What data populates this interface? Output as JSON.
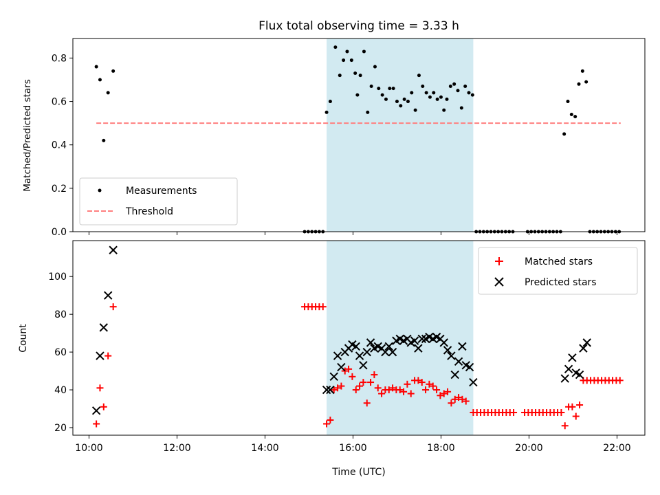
{
  "chart_data": [
    {
      "type": "scatter",
      "title": "Flux total observing time = 3.33 h",
      "ylabel": "Matched/Predicted stars",
      "xlabel": "",
      "xlim": [
        "09:38",
        "22:38"
      ],
      "ylim": [
        0,
        0.89
      ],
      "yticks": [
        0.0,
        0.2,
        0.4,
        0.6,
        0.8
      ],
      "ytick_labels": [
        "0.0",
        "0.2",
        "0.4",
        "0.6",
        "0.8"
      ],
      "grid": false,
      "legend_position": "lower-left",
      "shaded_span": {
        "start": "15:24",
        "end": "18:44",
        "color": "#add8e6"
      },
      "series": [
        {
          "name": "Measurements",
          "marker": "dot",
          "color": "#000000",
          "points": [
            [
              "10:10",
              0.76
            ],
            [
              "10:15",
              0.7
            ],
            [
              "10:20",
              0.42
            ],
            [
              "10:26",
              0.64
            ],
            [
              "10:33",
              0.74
            ],
            [
              "14:54",
              0.0
            ],
            [
              "14:59",
              0.0
            ],
            [
              "15:04",
              0.0
            ],
            [
              "15:09",
              0.0
            ],
            [
              "15:14",
              0.0
            ],
            [
              "15:19",
              0.0
            ],
            [
              "15:24",
              0.55
            ],
            [
              "15:29",
              0.6
            ],
            [
              "15:36",
              0.85
            ],
            [
              "15:42",
              0.72
            ],
            [
              "15:47",
              0.79
            ],
            [
              "15:52",
              0.83
            ],
            [
              "15:58",
              0.79
            ],
            [
              "16:03",
              0.73
            ],
            [
              "16:06",
              0.63
            ],
            [
              "16:10",
              0.72
            ],
            [
              "16:15",
              0.83
            ],
            [
              "16:20",
              0.55
            ],
            [
              "16:25",
              0.67
            ],
            [
              "16:30",
              0.76
            ],
            [
              "16:35",
              0.66
            ],
            [
              "16:40",
              0.63
            ],
            [
              "16:45",
              0.61
            ],
            [
              "16:50",
              0.66
            ],
            [
              "16:55",
              0.66
            ],
            [
              "17:00",
              0.6
            ],
            [
              "17:05",
              0.58
            ],
            [
              "17:10",
              0.61
            ],
            [
              "17:15",
              0.6
            ],
            [
              "17:20",
              0.64
            ],
            [
              "17:25",
              0.56
            ],
            [
              "17:30",
              0.72
            ],
            [
              "17:35",
              0.67
            ],
            [
              "17:40",
              0.64
            ],
            [
              "17:45",
              0.62
            ],
            [
              "17:50",
              0.64
            ],
            [
              "17:55",
              0.61
            ],
            [
              "18:00",
              0.62
            ],
            [
              "18:04",
              0.56
            ],
            [
              "18:08",
              0.61
            ],
            [
              "18:13",
              0.67
            ],
            [
              "18:18",
              0.68
            ],
            [
              "18:23",
              0.65
            ],
            [
              "18:28",
              0.57
            ],
            [
              "18:33",
              0.67
            ],
            [
              "18:38",
              0.64
            ],
            [
              "18:43",
              0.63
            ],
            [
              "18:48",
              0.0
            ],
            [
              "18:53",
              0.0
            ],
            [
              "18:58",
              0.0
            ],
            [
              "19:03",
              0.0
            ],
            [
              "19:08",
              0.0
            ],
            [
              "19:13",
              0.0
            ],
            [
              "19:18",
              0.0
            ],
            [
              "19:23",
              0.0
            ],
            [
              "19:28",
              0.0
            ],
            [
              "19:33",
              0.0
            ],
            [
              "19:38",
              0.0
            ],
            [
              "19:58",
              0.0
            ],
            [
              "20:03",
              0.0
            ],
            [
              "20:08",
              0.0
            ],
            [
              "20:13",
              0.0
            ],
            [
              "20:18",
              0.0
            ],
            [
              "20:23",
              0.0
            ],
            [
              "20:28",
              0.0
            ],
            [
              "20:33",
              0.0
            ],
            [
              "20:38",
              0.0
            ],
            [
              "20:43",
              0.0
            ],
            [
              "20:48",
              0.45
            ],
            [
              "20:53",
              0.6
            ],
            [
              "20:58",
              0.54
            ],
            [
              "21:03",
              0.53
            ],
            [
              "21:08",
              0.68
            ],
            [
              "21:13",
              0.74
            ],
            [
              "21:18",
              0.69
            ],
            [
              "21:23",
              0.0
            ],
            [
              "21:28",
              0.0
            ],
            [
              "21:33",
              0.0
            ],
            [
              "21:38",
              0.0
            ],
            [
              "21:43",
              0.0
            ],
            [
              "21:48",
              0.0
            ],
            [
              "21:53",
              0.0
            ],
            [
              "21:58",
              0.0
            ],
            [
              "22:03",
              0.0
            ]
          ]
        },
        {
          "name": "Threshold",
          "marker": "dashed-line",
          "color": "#ff7f7f",
          "points": [
            [
              "10:10",
              0.5
            ],
            [
              "22:05",
              0.5
            ]
          ]
        }
      ]
    },
    {
      "type": "scatter",
      "title": "",
      "xlabel": "Time (UTC)",
      "ylabel": "Count",
      "xlim": [
        "09:38",
        "22:38"
      ],
      "ylim": [
        16,
        119
      ],
      "xticks": [
        "10:00",
        "12:00",
        "14:00",
        "16:00",
        "18:00",
        "20:00",
        "22:00"
      ],
      "yticks": [
        20,
        40,
        60,
        80,
        100
      ],
      "ytick_labels": [
        "20",
        "40",
        "60",
        "80",
        "100"
      ],
      "grid": false,
      "legend_position": "upper-right",
      "shaded_span": {
        "start": "15:24",
        "end": "18:44",
        "color": "#add8e6"
      },
      "series": [
        {
          "name": "Matched stars",
          "marker": "plus",
          "color": "#ff0000",
          "points": [
            [
              "10:10",
              22
            ],
            [
              "10:15",
              41
            ],
            [
              "10:20",
              31
            ],
            [
              "10:26",
              58
            ],
            [
              "10:33",
              84
            ],
            [
              "14:54",
              84
            ],
            [
              "14:59",
              84
            ],
            [
              "15:04",
              84
            ],
            [
              "15:09",
              84
            ],
            [
              "15:14",
              84
            ],
            [
              "15:19",
              84
            ],
            [
              "15:24",
              22
            ],
            [
              "15:29",
              24
            ],
            [
              "15:34",
              40
            ],
            [
              "15:39",
              41
            ],
            [
              "15:44",
              42
            ],
            [
              "15:49",
              50
            ],
            [
              "15:54",
              51
            ],
            [
              "15:59",
              47
            ],
            [
              "16:04",
              40
            ],
            [
              "16:09",
              42
            ],
            [
              "16:14",
              44
            ],
            [
              "16:19",
              33
            ],
            [
              "16:24",
              44
            ],
            [
              "16:29",
              48
            ],
            [
              "16:34",
              41
            ],
            [
              "16:39",
              38
            ],
            [
              "16:44",
              40
            ],
            [
              "16:49",
              40
            ],
            [
              "16:54",
              41
            ],
            [
              "16:59",
              40
            ],
            [
              "17:04",
              40
            ],
            [
              "17:09",
              39
            ],
            [
              "17:14",
              43
            ],
            [
              "17:19",
              38
            ],
            [
              "17:24",
              45
            ],
            [
              "17:29",
              45
            ],
            [
              "17:34",
              44
            ],
            [
              "17:39",
              40
            ],
            [
              "17:44",
              43
            ],
            [
              "17:49",
              42
            ],
            [
              "17:54",
              40
            ],
            [
              "17:59",
              37
            ],
            [
              "18:04",
              38
            ],
            [
              "18:09",
              39
            ],
            [
              "18:14",
              33
            ],
            [
              "18:19",
              35
            ],
            [
              "18:24",
              36
            ],
            [
              "18:29",
              35
            ],
            [
              "18:34",
              34
            ],
            [
              "18:44",
              28
            ],
            [
              "18:49",
              28
            ],
            [
              "18:54",
              28
            ],
            [
              "18:59",
              28
            ],
            [
              "19:04",
              28
            ],
            [
              "19:09",
              28
            ],
            [
              "19:14",
              28
            ],
            [
              "19:19",
              28
            ],
            [
              "19:24",
              28
            ],
            [
              "19:29",
              28
            ],
            [
              "19:34",
              28
            ],
            [
              "19:39",
              28
            ],
            [
              "19:54",
              28
            ],
            [
              "19:59",
              28
            ],
            [
              "20:04",
              28
            ],
            [
              "20:09",
              28
            ],
            [
              "20:14",
              28
            ],
            [
              "20:19",
              28
            ],
            [
              "20:24",
              28
            ],
            [
              "20:29",
              28
            ],
            [
              "20:34",
              28
            ],
            [
              "20:39",
              28
            ],
            [
              "20:44",
              28
            ],
            [
              "20:49",
              21
            ],
            [
              "20:54",
              31
            ],
            [
              "20:59",
              31
            ],
            [
              "21:04",
              26
            ],
            [
              "21:09",
              32
            ],
            [
              "21:14",
              45
            ],
            [
              "21:19",
              45
            ],
            [
              "21:24",
              45
            ],
            [
              "21:29",
              45
            ],
            [
              "21:34",
              45
            ],
            [
              "21:39",
              45
            ],
            [
              "21:44",
              45
            ],
            [
              "21:49",
              45
            ],
            [
              "21:54",
              45
            ],
            [
              "21:59",
              45
            ],
            [
              "22:04",
              45
            ]
          ]
        },
        {
          "name": "Predicted stars",
          "marker": "x",
          "color": "#000000",
          "points": [
            [
              "10:10",
              29
            ],
            [
              "10:15",
              58
            ],
            [
              "10:20",
              73
            ],
            [
              "10:26",
              90
            ],
            [
              "10:33",
              114
            ],
            [
              "15:24",
              40
            ],
            [
              "15:29",
              40
            ],
            [
              "15:34",
              47
            ],
            [
              "15:39",
              58
            ],
            [
              "15:44",
              52
            ],
            [
              "15:49",
              60
            ],
            [
              "15:54",
              62
            ],
            [
              "15:59",
              64
            ],
            [
              "16:04",
              63
            ],
            [
              "16:09",
              58
            ],
            [
              "16:14",
              53
            ],
            [
              "16:19",
              60
            ],
            [
              "16:24",
              65
            ],
            [
              "16:29",
              62
            ],
            [
              "16:34",
              63
            ],
            [
              "16:39",
              62
            ],
            [
              "16:44",
              60
            ],
            [
              "16:49",
              63
            ],
            [
              "16:54",
              60
            ],
            [
              "16:59",
              66
            ],
            [
              "17:04",
              67
            ],
            [
              "17:09",
              66
            ],
            [
              "17:14",
              67
            ],
            [
              "17:19",
              65
            ],
            [
              "17:24",
              66
            ],
            [
              "17:29",
              62
            ],
            [
              "17:34",
              67
            ],
            [
              "17:39",
              67
            ],
            [
              "17:44",
              68
            ],
            [
              "17:49",
              67
            ],
            [
              "17:54",
              68
            ],
            [
              "17:59",
              67
            ],
            [
              "18:04",
              65
            ],
            [
              "18:09",
              61
            ],
            [
              "18:14",
              58
            ],
            [
              "18:19",
              48
            ],
            [
              "18:24",
              55
            ],
            [
              "18:29",
              63
            ],
            [
              "18:34",
              53
            ],
            [
              "18:39",
              52
            ],
            [
              "18:44",
              44
            ],
            [
              "20:49",
              46
            ],
            [
              "20:54",
              51
            ],
            [
              "20:59",
              57
            ],
            [
              "21:04",
              49
            ],
            [
              "21:09",
              48
            ],
            [
              "21:14",
              62
            ],
            [
              "21:19",
              65
            ]
          ]
        }
      ]
    }
  ]
}
